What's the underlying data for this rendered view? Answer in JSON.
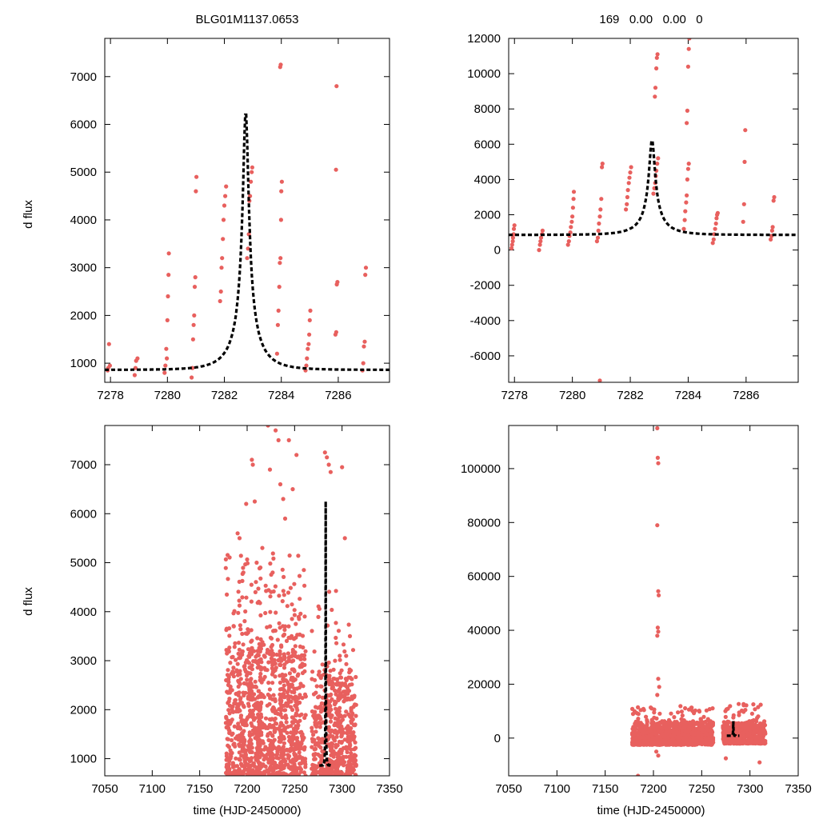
{
  "figure": {
    "title_left": "BLG01M1137.0653",
    "title_right": "169   0.00   0.00   0",
    "ylabel": "d flux",
    "xlabel": "time (HJD-2450000)"
  },
  "colors": {
    "data": "#e8605e",
    "model": "#000000",
    "axes": "#000000"
  },
  "chart_data": [
    {
      "type": "scatter",
      "name": "top-left",
      "title": "BLG01M1137.0653",
      "xlabel": "",
      "ylabel": "d flux",
      "xlim": [
        7277.8,
        7287.8
      ],
      "ylim": [
        600,
        7800
      ],
      "xticks": [
        7278,
        7280,
        7282,
        7284,
        7286
      ],
      "yticks": [
        1000,
        2000,
        3000,
        4000,
        5000,
        6000,
        7000
      ],
      "model": {
        "t0": 7282.75,
        "u0": 0.1,
        "tE": 1.0,
        "base": 260,
        "amp": 600
      },
      "points": [
        [
          7277.9,
          850
        ],
        [
          7277.92,
          900
        ],
        [
          7277.95,
          1400
        ],
        [
          7277.98,
          950
        ],
        [
          7278.85,
          750
        ],
        [
          7278.88,
          900
        ],
        [
          7278.9,
          1050
        ],
        [
          7278.95,
          1100
        ],
        [
          7279.9,
          800
        ],
        [
          7279.93,
          950
        ],
        [
          7279.96,
          1300
        ],
        [
          7279.98,
          1100
        ],
        [
          7280.0,
          1900
        ],
        [
          7280.02,
          2400
        ],
        [
          7280.04,
          2850
        ],
        [
          7280.05,
          3300
        ],
        [
          7280.85,
          700
        ],
        [
          7280.88,
          900
        ],
        [
          7280.9,
          1500
        ],
        [
          7280.92,
          1800
        ],
        [
          7280.94,
          2000
        ],
        [
          7280.96,
          2600
        ],
        [
          7280.98,
          2800
        ],
        [
          7281.0,
          4600
        ],
        [
          7281.02,
          4900
        ],
        [
          7281.85,
          2300
        ],
        [
          7281.88,
          2500
        ],
        [
          7281.9,
          3000
        ],
        [
          7281.92,
          3200
        ],
        [
          7281.95,
          3600
        ],
        [
          7281.97,
          4000
        ],
        [
          7282.0,
          4300
        ],
        [
          7282.03,
          4500
        ],
        [
          7282.06,
          4700
        ],
        [
          7282.8,
          3200
        ],
        [
          7282.83,
          3400
        ],
        [
          7282.86,
          3700
        ],
        [
          7282.88,
          4400
        ],
        [
          7282.9,
          4500
        ],
        [
          7282.93,
          4800
        ],
        [
          7282.96,
          5000
        ],
        [
          7282.98,
          5100
        ],
        [
          7283.85,
          1200
        ],
        [
          7283.88,
          1800
        ],
        [
          7283.9,
          2100
        ],
        [
          7283.93,
          2600
        ],
        [
          7283.95,
          3100
        ],
        [
          7283.97,
          3200
        ],
        [
          7283.99,
          4000
        ],
        [
          7284.0,
          4600
        ],
        [
          7284.02,
          4800
        ],
        [
          7283.96,
          7200
        ],
        [
          7283.98,
          7250
        ],
        [
          7284.85,
          850
        ],
        [
          7284.88,
          950
        ],
        [
          7284.9,
          1100
        ],
        [
          7284.93,
          1300
        ],
        [
          7284.96,
          1400
        ],
        [
          7284.98,
          1600
        ],
        [
          7285.0,
          1900
        ],
        [
          7285.02,
          2100
        ],
        [
          7285.9,
          1600
        ],
        [
          7285.93,
          1650
        ],
        [
          7285.95,
          2650
        ],
        [
          7285.97,
          2700
        ],
        [
          7285.92,
          5050
        ],
        [
          7285.94,
          6800
        ],
        [
          7286.85,
          850
        ],
        [
          7286.88,
          1000
        ],
        [
          7286.9,
          1350
        ],
        [
          7286.93,
          1450
        ],
        [
          7286.95,
          2850
        ],
        [
          7286.97,
          3000
        ]
      ]
    },
    {
      "type": "scatter",
      "name": "top-right",
      "title": "169   0.00   0.00   0",
      "xlabel": "",
      "ylabel": "",
      "xlim": [
        7277.8,
        7287.8
      ],
      "ylim": [
        -7500,
        12000
      ],
      "xticks": [
        7278,
        7280,
        7282,
        7284,
        7286
      ],
      "yticks": [
        -6000,
        -4000,
        -2000,
        0,
        2000,
        4000,
        6000,
        8000,
        10000,
        12000
      ],
      "model": {
        "t0": 7282.75,
        "u0": 0.1,
        "tE": 1.0,
        "base": 260,
        "amp": 600
      },
      "points": [
        [
          7277.9,
          100
        ],
        [
          7277.92,
          300
        ],
        [
          7277.94,
          500
        ],
        [
          7277.95,
          700
        ],
        [
          7277.97,
          900
        ],
        [
          7277.98,
          1200
        ],
        [
          7278.0,
          1400
        ],
        [
          7278.85,
          0
        ],
        [
          7278.88,
          300
        ],
        [
          7278.9,
          500
        ],
        [
          7278.92,
          700
        ],
        [
          7278.95,
          900
        ],
        [
          7278.97,
          1100
        ],
        [
          7279.85,
          300
        ],
        [
          7279.88,
          500
        ],
        [
          7279.9,
          800
        ],
        [
          7279.93,
          1000
        ],
        [
          7279.95,
          1300
        ],
        [
          7279.98,
          1600
        ],
        [
          7280.0,
          1900
        ],
        [
          7280.02,
          2400
        ],
        [
          7280.04,
          2900
        ],
        [
          7280.05,
          3300
        ],
        [
          7280.85,
          500
        ],
        [
          7280.88,
          700
        ],
        [
          7280.9,
          1100
        ],
        [
          7280.92,
          1500
        ],
        [
          7280.95,
          1900
        ],
        [
          7280.97,
          2300
        ],
        [
          7281.0,
          2900
        ],
        [
          7281.02,
          4700
        ],
        [
          7281.04,
          4900
        ],
        [
          7280.95,
          -7400
        ],
        [
          7281.85,
          2300
        ],
        [
          7281.88,
          2600
        ],
        [
          7281.9,
          3000
        ],
        [
          7281.92,
          3400
        ],
        [
          7281.95,
          3800
        ],
        [
          7281.97,
          4100
        ],
        [
          7282.0,
          4400
        ],
        [
          7282.03,
          4700
        ],
        [
          7282.8,
          3200
        ],
        [
          7282.83,
          3500
        ],
        [
          7282.86,
          3800
        ],
        [
          7282.88,
          4200
        ],
        [
          7282.9,
          4500
        ],
        [
          7282.93,
          4900
        ],
        [
          7282.96,
          5200
        ],
        [
          7282.85,
          8700
        ],
        [
          7282.87,
          9200
        ],
        [
          7282.9,
          10300
        ],
        [
          7282.92,
          10900
        ],
        [
          7282.94,
          11100
        ],
        [
          7283.85,
          1200
        ],
        [
          7283.88,
          1700
        ],
        [
          7283.9,
          2200
        ],
        [
          7283.93,
          2700
        ],
        [
          7283.95,
          3100
        ],
        [
          7283.97,
          4000
        ],
        [
          7284.0,
          4600
        ],
        [
          7284.02,
          4900
        ],
        [
          7283.95,
          7200
        ],
        [
          7283.97,
          7900
        ],
        [
          7284.0,
          10400
        ],
        [
          7284.02,
          11400
        ],
        [
          7284.04,
          12000
        ],
        [
          7284.85,
          400
        ],
        [
          7284.88,
          600
        ],
        [
          7284.9,
          900
        ],
        [
          7284.93,
          1200
        ],
        [
          7284.96,
          1500
        ],
        [
          7284.98,
          1800
        ],
        [
          7285.0,
          2000
        ],
        [
          7285.02,
          2100
        ],
        [
          7285.9,
          1600
        ],
        [
          7285.93,
          2600
        ],
        [
          7285.95,
          5000
        ],
        [
          7285.97,
          6800
        ],
        [
          7286.85,
          600
        ],
        [
          7286.88,
          800
        ],
        [
          7286.9,
          1100
        ],
        [
          7286.92,
          1300
        ],
        [
          7286.95,
          2800
        ],
        [
          7286.97,
          3000
        ]
      ]
    },
    {
      "type": "scatter",
      "name": "bottom-left",
      "title": "",
      "xlabel": "time (HJD-2450000)",
      "ylabel": "d flux",
      "xlim": [
        7050,
        7350
      ],
      "ylim": [
        650,
        7800
      ],
      "xticks": [
        7050,
        7100,
        7150,
        7200,
        7250,
        7300,
        7350
      ],
      "yticks": [
        1000,
        2000,
        3000,
        4000,
        5000,
        6000,
        7000
      ],
      "clusters": [
        {
          "x": [
            7180,
            7262
          ],
          "n": 1100,
          "ymin": 650,
          "ymax": 3200,
          "seed": 11
        },
        {
          "x": [
            7180,
            7262
          ],
          "n": 150,
          "ymin": 3200,
          "ymax": 5200,
          "seed": 12
        },
        {
          "x": [
            7268,
            7315
          ],
          "n": 520,
          "ymin": 650,
          "ymax": 2800,
          "seed": 13
        },
        {
          "x": [
            7268,
            7315
          ],
          "n": 30,
          "ymin": 2800,
          "ymax": 4600,
          "seed": 14
        }
      ],
      "stripes": [
        7180,
        7193,
        7203,
        7213,
        7226,
        7237,
        7249,
        7286,
        7298,
        7308
      ],
      "extra_points": [
        [
          7190,
          5600
        ],
        [
          7192,
          5500
        ],
        [
          7196,
          4800
        ],
        [
          7199,
          6200
        ],
        [
          7205,
          7100
        ],
        [
          7206,
          7000
        ],
        [
          7208,
          6250
        ],
        [
          7210,
          5000
        ],
        [
          7216,
          5300
        ],
        [
          7222,
          7800
        ],
        [
          7224,
          6900
        ],
        [
          7230,
          7700
        ],
        [
          7233,
          7500
        ],
        [
          7235,
          6600
        ],
        [
          7238,
          6300
        ],
        [
          7240,
          5900
        ],
        [
          7244,
          7500
        ],
        [
          7248,
          6500
        ],
        [
          7252,
          7200
        ],
        [
          7282,
          7250
        ],
        [
          7284,
          7150
        ],
        [
          7286,
          7000
        ],
        [
          7288,
          6850
        ],
        [
          7300,
          6950
        ],
        [
          7303,
          5500
        ]
      ],
      "model": {
        "t0": 7282.75,
        "u0": 0.1,
        "tE": 1.0,
        "base": 260,
        "amp": 600,
        "tmin": 7276,
        "tmax": 7289
      }
    },
    {
      "type": "scatter",
      "name": "bottom-right",
      "title": "",
      "xlabel": "time (HJD-2450000)",
      "ylabel": "",
      "xlim": [
        7050,
        7350
      ],
      "ylim": [
        -14000,
        116000
      ],
      "xticks": [
        7050,
        7100,
        7150,
        7200,
        7250,
        7300,
        7350
      ],
      "yticks": [
        0,
        20000,
        40000,
        60000,
        80000,
        100000
      ],
      "clusters": [
        {
          "x": [
            7178,
            7262
          ],
          "n": 900,
          "ymin": -2500,
          "ymax": 6000,
          "seed": 21
        },
        {
          "x": [
            7178,
            7262
          ],
          "n": 60,
          "ymin": 6000,
          "ymax": 12000,
          "seed": 22
        },
        {
          "x": [
            7272,
            7316
          ],
          "n": 420,
          "ymin": -2000,
          "ymax": 5500,
          "seed": 23
        },
        {
          "x": [
            7272,
            7316
          ],
          "n": 40,
          "ymin": 5500,
          "ymax": 13000,
          "seed": 24
        }
      ],
      "extra_points": [
        [
          7204,
          115000
        ],
        [
          7204.5,
          104000
        ],
        [
          7205,
          102000
        ],
        [
          7204,
          79000
        ],
        [
          7205,
          54500
        ],
        [
          7205.5,
          53000
        ],
        [
          7204.5,
          41000
        ],
        [
          7205,
          39500
        ],
        [
          7204,
          38000
        ],
        [
          7205,
          22000
        ],
        [
          7206,
          19000
        ],
        [
          7204,
          16000
        ],
        [
          7203,
          -5000
        ],
        [
          7205,
          -6500
        ],
        [
          7184,
          -14000
        ],
        [
          7275,
          -7500
        ],
        [
          7310,
          -9000
        ]
      ],
      "model": {
        "t0": 7282.75,
        "u0": 0.1,
        "tE": 1.0,
        "base": 260,
        "amp": 600,
        "tmin": 7276,
        "tmax": 7289
      }
    }
  ]
}
